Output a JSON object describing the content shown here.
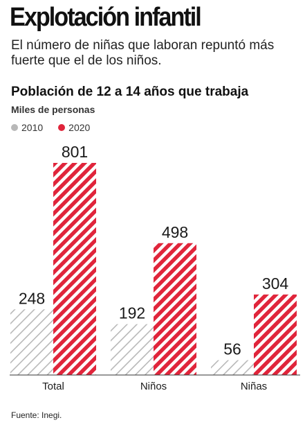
{
  "headline": "Explotación infantil",
  "deck": "El número de niñas que laboran repuntó más fuerte que el de los niños.",
  "source": "Fuente: Inegi.",
  "colors": {
    "y2010": "#b8b8b8",
    "y2020": "#e0253b"
  },
  "chart_data": {
    "type": "bar",
    "title": "Población de 12 a 14 años que trabaja",
    "subtitle": "Miles de personas",
    "categories": [
      "Total",
      "Niños",
      "Niñas"
    ],
    "series": [
      {
        "name": "2010",
        "values": [
          248,
          192,
          56
        ]
      },
      {
        "name": "2020",
        "values": [
          801,
          498,
          304
        ]
      }
    ],
    "ylim": [
      0,
      801
    ],
    "grid": false,
    "legend_position": "top-left",
    "pattern": "diagonal-stripes"
  }
}
